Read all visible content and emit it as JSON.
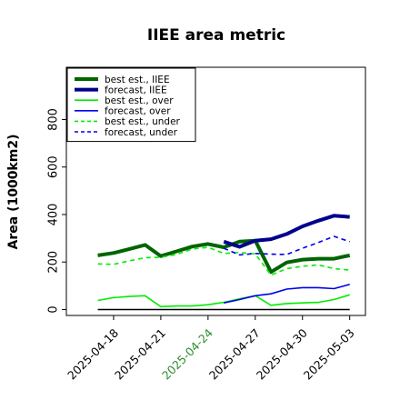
{
  "chart_data": {
    "type": "line",
    "title": "IIEE area metric",
    "xlabel": "",
    "ylabel": "Area (1000km2)",
    "xlim": [
      "2025-04-15",
      "2025-05-04"
    ],
    "ylim": [
      -25,
      1020
    ],
    "yticks": [
      0,
      200,
      400,
      600,
      800
    ],
    "xticks": [
      {
        "date": "2025-04-18",
        "label": "2025-04-18",
        "color": "#000000"
      },
      {
        "date": "2025-04-21",
        "label": "2025-04-21",
        "color": "#000000"
      },
      {
        "date": "2025-04-24",
        "label": "2025-04-24",
        "color": "#2e8b2e"
      },
      {
        "date": "2025-04-27",
        "label": "2025-04-27",
        "color": "#000000"
      },
      {
        "date": "2025-04-30",
        "label": "2025-04-30",
        "color": "#000000"
      },
      {
        "date": "2025-05-03",
        "label": "2025-05-03",
        "color": "#000000"
      }
    ],
    "grid": false,
    "legend_position": "top-left",
    "series": [
      {
        "name": "best est., IIEE",
        "color": "#006400",
        "width": 4,
        "dash": "",
        "x": [
          "2025-04-17",
          "2025-04-18",
          "2025-04-19",
          "2025-04-20",
          "2025-04-21",
          "2025-04-22",
          "2025-04-23",
          "2025-04-24",
          "2025-04-25",
          "2025-04-26",
          "2025-04-27",
          "2025-04-28",
          "2025-04-29",
          "2025-04-30",
          "2025-05-01",
          "2025-05-02",
          "2025-05-03"
        ],
        "y": [
          228,
          238,
          255,
          272,
          225,
          245,
          265,
          276,
          262,
          286,
          290,
          158,
          198,
          210,
          214,
          214,
          228
        ]
      },
      {
        "name": "forecast, IIEE",
        "color": "#00008b",
        "width": 4,
        "dash": "",
        "x": [
          "2025-04-25",
          "2025-04-26",
          "2025-04-27",
          "2025-04-28",
          "2025-04-29",
          "2025-04-30",
          "2025-05-01",
          "2025-05-02",
          "2025-05-03"
        ],
        "y": [
          286,
          264,
          290,
          296,
          318,
          350,
          374,
          395,
          390
        ]
      },
      {
        "name": "best est., over",
        "color": "#00ee00",
        "width": 1.6,
        "dash": "",
        "x": [
          "2025-04-17",
          "2025-04-18",
          "2025-04-19",
          "2025-04-20",
          "2025-04-21",
          "2025-04-22",
          "2025-04-23",
          "2025-04-24",
          "2025-04-25",
          "2025-04-26",
          "2025-04-27",
          "2025-04-28",
          "2025-04-29",
          "2025-04-30",
          "2025-05-01",
          "2025-05-02",
          "2025-05-03"
        ],
        "y": [
          38,
          50,
          55,
          58,
          12,
          15,
          15,
          20,
          30,
          45,
          58,
          18,
          25,
          28,
          30,
          42,
          62
        ]
      },
      {
        "name": "forecast, over",
        "color": "#0000ee",
        "width": 1.6,
        "dash": "",
        "x": [
          "2025-04-25",
          "2025-04-26",
          "2025-04-27",
          "2025-04-28",
          "2025-04-29",
          "2025-04-30",
          "2025-05-01",
          "2025-05-02",
          "2025-05-03"
        ],
        "y": [
          28,
          42,
          58,
          66,
          86,
          92,
          92,
          88,
          106
        ]
      },
      {
        "name": "best est., under",
        "color": "#00ee00",
        "width": 1.6,
        "dash": "5,4",
        "x": [
          "2025-04-17",
          "2025-04-18",
          "2025-04-19",
          "2025-04-20",
          "2025-04-21",
          "2025-04-22",
          "2025-04-23",
          "2025-04-24",
          "2025-04-25",
          "2025-04-26",
          "2025-04-27",
          "2025-04-28",
          "2025-04-29",
          "2025-04-30",
          "2025-05-01",
          "2025-05-02",
          "2025-05-03"
        ],
        "y": [
          192,
          190,
          205,
          218,
          220,
          232,
          255,
          262,
          236,
          240,
          234,
          145,
          172,
          182,
          188,
          172,
          166
        ]
      },
      {
        "name": "forecast, under",
        "color": "#0000ee",
        "width": 1.6,
        "dash": "5,4",
        "x": [
          "2025-04-25",
          "2025-04-26",
          "2025-04-27",
          "2025-04-28",
          "2025-04-29",
          "2025-04-30",
          "2025-05-01",
          "2025-05-02",
          "2025-05-03"
        ],
        "y": [
          258,
          230,
          236,
          233,
          232,
          258,
          282,
          308,
          286
        ]
      },
      {
        "name": "",
        "color": "#000000",
        "width": 1.4,
        "dash": "",
        "x": [
          "2025-04-17",
          "2025-05-03"
        ],
        "y": [
          0,
          0
        ]
      }
    ]
  }
}
